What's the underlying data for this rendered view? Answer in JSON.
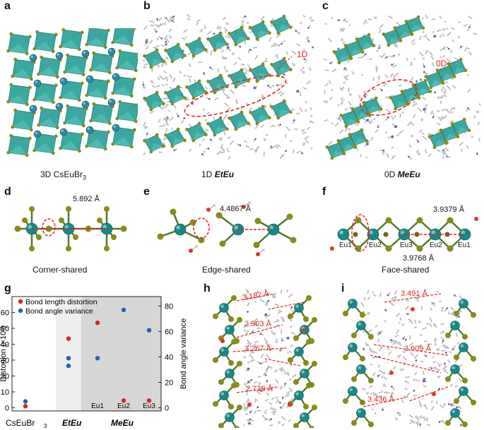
{
  "panels": {
    "a": {
      "label": "a",
      "caption": "3D CsEuBr",
      "caption_sub": "3"
    },
    "b": {
      "label": "b",
      "caption_prefix": "1D ",
      "caption_em": "EtEu",
      "dim_label": "1D"
    },
    "c": {
      "label": "c",
      "caption_prefix": "0D ",
      "caption_em": "MeEu",
      "dim_label": "0D"
    },
    "d": {
      "label": "d",
      "caption": "Corner-shared",
      "distance": "5.892 Å"
    },
    "e": {
      "label": "e",
      "caption": "Edge-shared",
      "distance": "4.4867 Å"
    },
    "f": {
      "label": "f",
      "caption": "Face-shared",
      "distance_top": "3.9379 Å",
      "distance_bottom": "3.9768 Å",
      "sites": [
        "Eu1",
        "Eu2",
        "Eu3",
        "Eu2",
        "Eu1"
      ]
    },
    "g": {
      "label": "g"
    },
    "h": {
      "label": "h",
      "distances": [
        "3.182 Å",
        "2.903 Å",
        "3.267 Å",
        "2.739 Å"
      ]
    },
    "i": {
      "label": "i",
      "distances": [
        "3.491 Å",
        "3.609 Å",
        "3.436 Å"
      ]
    }
  },
  "colors": {
    "octahedron": "#2aa198",
    "eu_atom": "#138a88",
    "br_atom": "#8a8a1a",
    "annotation": "#e3231f",
    "bond_length": "#d62728",
    "bond_angle": "#1f63b4"
  },
  "chart_data": {
    "type": "scatter",
    "categories": [
      "CsEuBr3",
      "EtEu",
      "MeEu Eu1",
      "MeEu Eu2",
      "MeEu Eu3"
    ],
    "category_labels": {
      "cs": "CsEuBr",
      "cs_sub": "3",
      "et": "EtEu",
      "me": "MeEu",
      "me_sites": [
        "Eu1",
        "Eu2",
        "Eu3"
      ]
    },
    "ylabel": "Distortion (×10³)",
    "y2label": "Bond angle variance",
    "ylim": [
      -2,
      70
    ],
    "y2lim": [
      -2.5,
      87.5
    ],
    "yticks": [
      0,
      10,
      20,
      30,
      40,
      50,
      60
    ],
    "y2ticks": [
      0,
      20,
      40,
      60,
      80
    ],
    "legend": "top-left",
    "series": [
      {
        "name": "Bond length distortion",
        "axis": "left",
        "color": "#d62728",
        "points": [
          {
            "x": 0,
            "y": 1
          },
          {
            "x": 1,
            "y": 43.5
          },
          {
            "x": 2,
            "y": 53.5
          },
          {
            "x": 3,
            "y": 4.5
          },
          {
            "x": 4,
            "y": 4.5
          }
        ]
      },
      {
        "name": "Bond angle variance",
        "axis": "right",
        "color": "#1f63b4",
        "points": [
          {
            "x": 0,
            "y": 5
          },
          {
            "x": 1,
            "y": 33
          },
          {
            "x": 1,
            "y": 39
          },
          {
            "x": 2,
            "y": 39
          },
          {
            "x": 3,
            "y": 77
          },
          {
            "x": 4,
            "y": 61
          }
        ]
      }
    ]
  }
}
